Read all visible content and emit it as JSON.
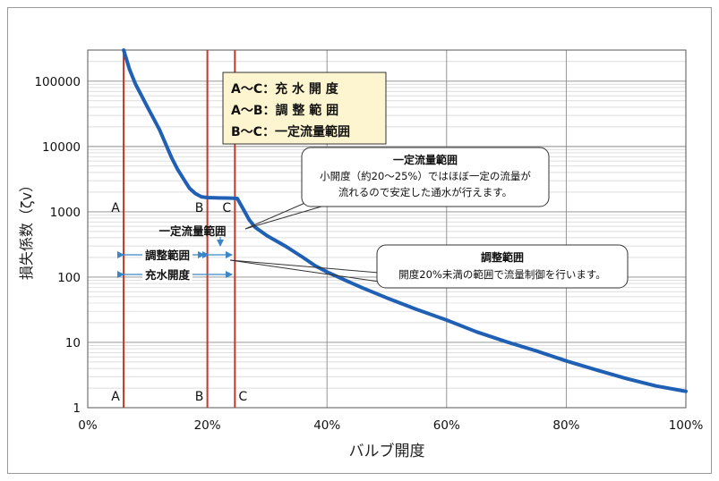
{
  "chart_data": {
    "type": "line",
    "xlabel": "バルブ開度",
    "ylabel": "損失係数（ζv）",
    "xlim": [
      0,
      100
    ],
    "ylim": [
      1,
      300000
    ],
    "y_scale": "log",
    "grid": true,
    "x_ticks": [
      0,
      20,
      40,
      60,
      80,
      100
    ],
    "x_tick_labels": [
      "0%",
      "20%",
      "40%",
      "60%",
      "80%",
      "100%"
    ],
    "y_ticks": [
      1,
      10,
      100,
      1000,
      10000,
      100000
    ],
    "y_tick_labels": [
      "1",
      "10",
      "100",
      "1000",
      "10000",
      "100000"
    ],
    "series": [
      {
        "color": "#1f5fb4",
        "x": [
          6,
          7,
          8,
          10,
          12,
          14,
          15,
          16,
          17,
          18,
          19,
          20,
          22,
          24,
          25,
          26,
          27,
          28,
          30,
          33,
          36,
          38,
          40,
          43,
          46,
          50,
          55,
          60,
          65,
          70,
          75,
          80,
          85,
          90,
          95,
          100
        ],
        "y": [
          300000,
          150000,
          90000,
          40000,
          18000,
          6800,
          4500,
          3200,
          2300,
          1900,
          1700,
          1650,
          1630,
          1620,
          1600,
          1100,
          750,
          580,
          430,
          300,
          200,
          150,
          120,
          90,
          68,
          48,
          32,
          22,
          14.5,
          10.2,
          7.4,
          5.2,
          3.8,
          2.8,
          2.15,
          1.78
        ]
      }
    ],
    "markers": [
      {
        "x": 6,
        "label": "A"
      },
      {
        "x": 20,
        "label": "B"
      },
      {
        "x": 24.6,
        "label": "C"
      }
    ],
    "legend_box": {
      "lines": [
        "A〜C：充 水 開 度",
        "A〜B：調 整 範 囲",
        "B〜C：一定流量範囲"
      ],
      "background": "#fdf5cf"
    },
    "annotations": {
      "range_label": "一定流量範囲",
      "adjust_label": "調整範囲",
      "fill_label": "充水開度"
    },
    "callouts": [
      {
        "title": "一定流量範囲",
        "lines": [
          "小開度（約20〜25%）ではほぼ一定の流量が",
          "流れるので安定した通水が行えます。"
        ]
      },
      {
        "title": "調整範囲",
        "lines": [
          "開度20%未満の範囲で流量制御を行います。"
        ]
      }
    ],
    "colors": {
      "curve": "#1f5fb4",
      "marker": "#c0392b",
      "arrow": "#3a86c8"
    }
  }
}
